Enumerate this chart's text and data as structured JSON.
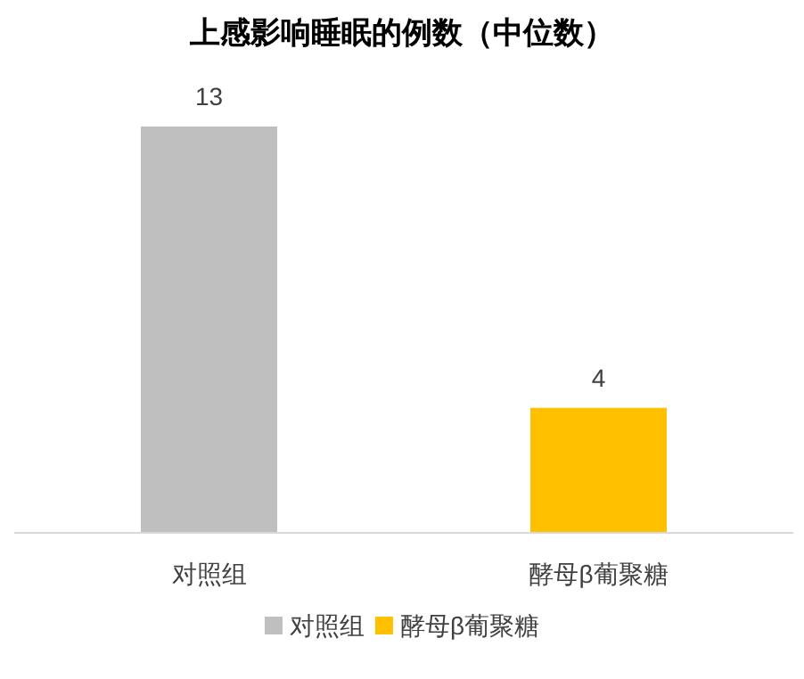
{
  "chart_data": {
    "type": "bar",
    "title": "上感影响睡眠的例数（中位数）",
    "categories": [
      "对照组",
      "酵母β葡聚糖"
    ],
    "series": [
      {
        "name": "对照组",
        "color": "#bfbfbf",
        "values": [
          13,
          null
        ]
      },
      {
        "name": "酵母β葡聚糖",
        "color": "#ffc000",
        "values": [
          null,
          4
        ]
      }
    ],
    "data_labels": true,
    "legend": "bottom"
  }
}
